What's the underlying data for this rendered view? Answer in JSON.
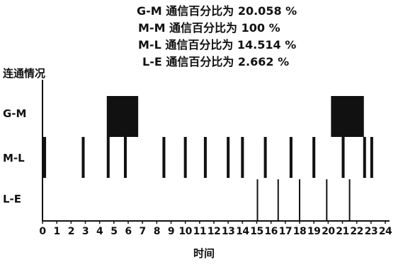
{
  "chart_data": {
    "type": "timeline",
    "stats": [
      "G-M 通信百分比为 20.058 %",
      "M-M 通信百分比为 100 %",
      "M-L 通信百分比为 14.514 %",
      "L-E 通信百分比为 2.662 %"
    ],
    "ylabel": "连通情况",
    "xlabel": "时间",
    "x_ticks": [
      "0",
      "1",
      "2",
      "3",
      "4",
      "5",
      "6",
      "7",
      "8",
      "9",
      "10",
      "11",
      "12",
      "13",
      "14",
      "15",
      "16",
      "17",
      "18",
      "19",
      "20",
      "21",
      "22",
      "23",
      "24"
    ],
    "xlim": [
      0,
      24
    ],
    "rows": [
      {
        "name": "G-M",
        "intervals": [
          [
            4.5,
            6.7
          ],
          [
            20.2,
            22.5
          ]
        ]
      },
      {
        "name": "M-L",
        "intervals": [
          [
            0.0,
            0.25
          ],
          [
            2.75,
            2.95
          ],
          [
            4.5,
            4.7
          ],
          [
            5.7,
            5.9
          ],
          [
            8.4,
            8.6
          ],
          [
            9.9,
            10.1
          ],
          [
            11.3,
            11.5
          ],
          [
            12.9,
            13.1
          ],
          [
            13.9,
            14.1
          ],
          [
            15.5,
            15.7
          ],
          [
            17.3,
            17.5
          ],
          [
            18.9,
            19.1
          ],
          [
            20.95,
            21.15
          ],
          [
            22.45,
            22.65
          ],
          [
            22.95,
            23.15
          ]
        ]
      },
      {
        "name": "L-E",
        "events": [
          15.05,
          16.5,
          18.0,
          19.9,
          21.5
        ]
      }
    ]
  }
}
